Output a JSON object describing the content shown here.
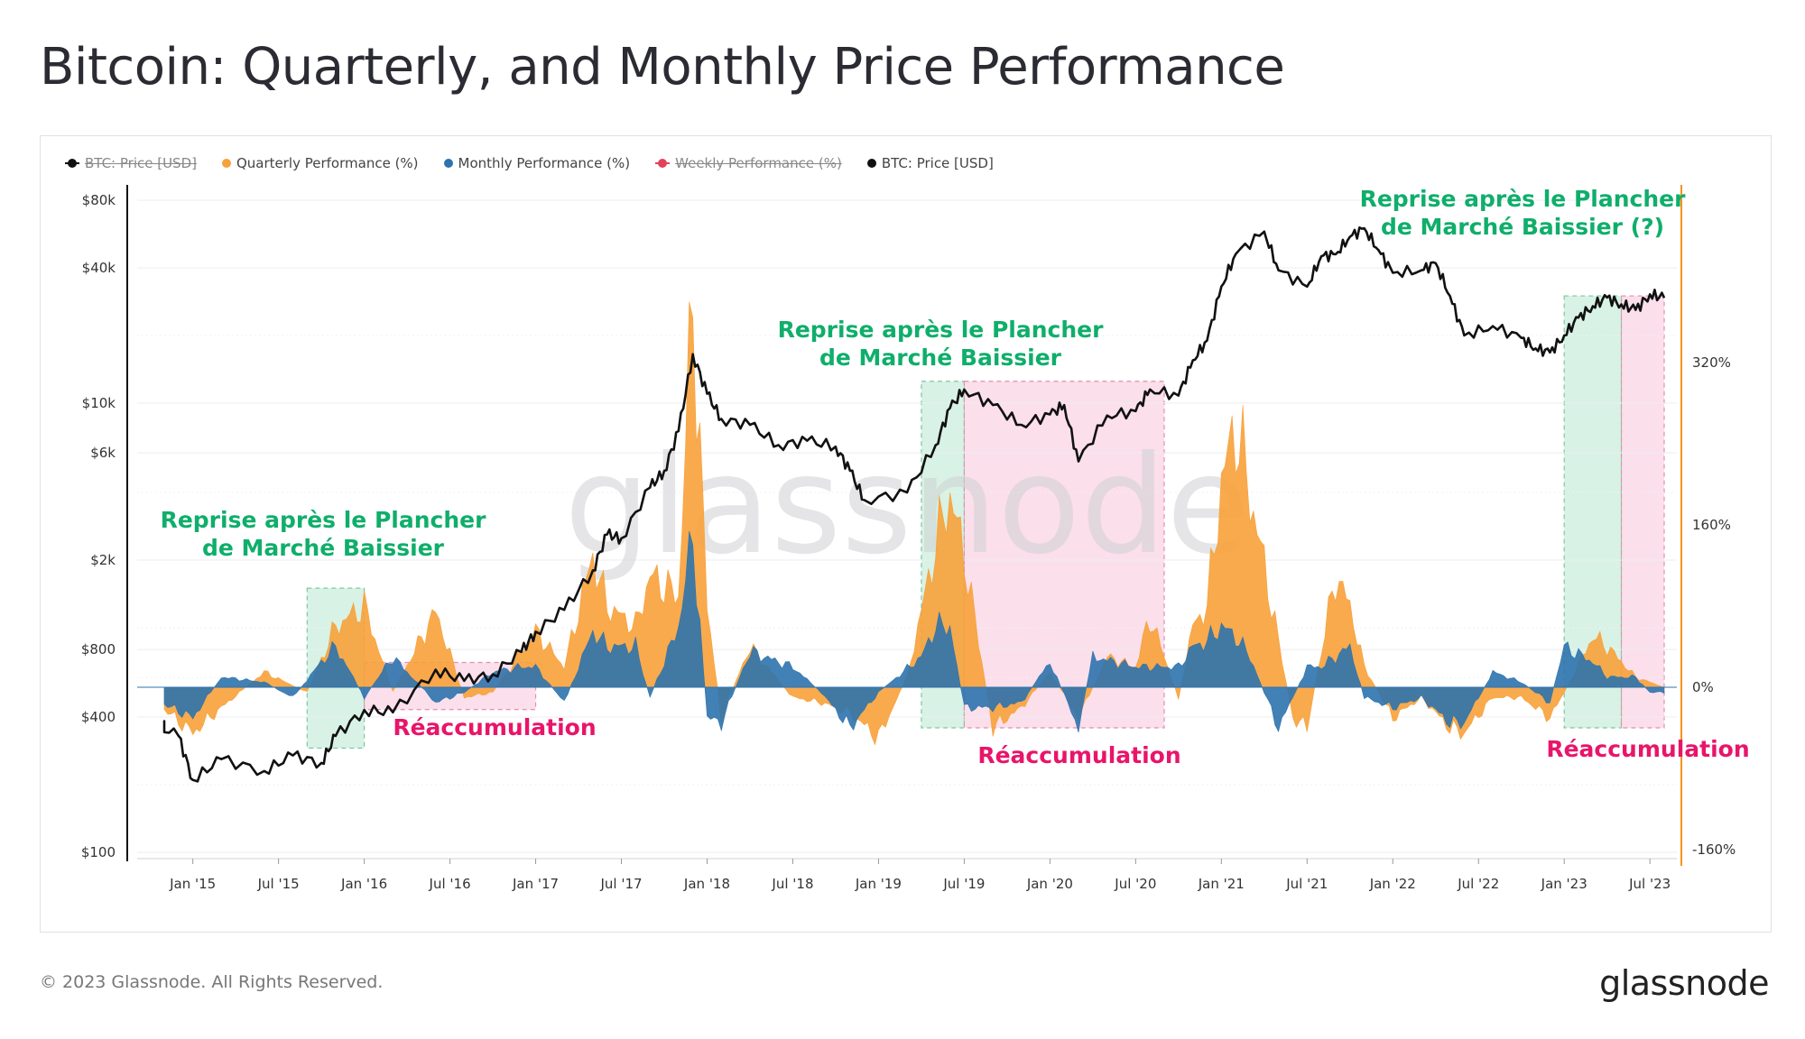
{
  "page": {
    "title": "Bitcoin: Quarterly, and Monthly Price Performance",
    "copyright": "© 2023 Glassnode. All Rights Reserved.",
    "logo": "glassnode",
    "watermark": "glassnode"
  },
  "colors": {
    "price": "#111111",
    "quarterly": "#f7a13a",
    "monthly": "#2e73ad",
    "weekly": "#e0435b",
    "green_zone": "#a9e3c5",
    "pink_zone": "#f7b7d2",
    "green_text": "#0fae6b",
    "pink_text": "#e8156a",
    "right_axis": "#f7931a"
  },
  "legend": [
    {
      "label": "BTC: Price [USD]",
      "color": "#111111",
      "marker": "line-dot",
      "enabled": false
    },
    {
      "label": "Quarterly Performance (%)",
      "color": "#f7a13a",
      "marker": "dot",
      "enabled": true
    },
    {
      "label": "Monthly Performance (%)",
      "color": "#2e73ad",
      "marker": "dot",
      "enabled": true
    },
    {
      "label": "Weekly Performance (%)",
      "color": "#e0435b",
      "marker": "line-dot",
      "enabled": false
    },
    {
      "label": "BTC: Price [USD]",
      "color": "#111111",
      "marker": "dot",
      "enabled": true
    }
  ],
  "chart_data": {
    "type": "line",
    "title": "Bitcoin: Quarterly, and Monthly Price Performance",
    "x_ticks": [
      "Jan '15",
      "Jul '15",
      "Jan '16",
      "Jul '16",
      "Jan '17",
      "Jul '17",
      "Jan '18",
      "Jul '18",
      "Jan '19",
      "Jul '19",
      "Jan '20",
      "Jul '20",
      "Jan '21",
      "Jul '21",
      "Jan '22",
      "Jul '22",
      "Jan '23",
      "Jul '23"
    ],
    "x_range": [
      "2014-10",
      "2023-08"
    ],
    "y_left": {
      "scale": "log",
      "ticks": [
        "$80k",
        "$40k",
        "$10k",
        "$6k",
        "$2k",
        "$800",
        "$400",
        "$100"
      ],
      "tick_values": [
        80000,
        40000,
        10000,
        6000,
        2000,
        800,
        400,
        100
      ],
      "range": [
        100,
        80000
      ]
    },
    "y_right": {
      "scale": "linear",
      "ticks": [
        "320%",
        "160%",
        "0%",
        "-160%"
      ],
      "tick_values": [
        320,
        160,
        0,
        -160
      ],
      "range": [
        -160,
        440
      ]
    },
    "series": [
      {
        "name": "BTC: Price [USD]",
        "axis": "left",
        "x": [
          "2014-10",
          "2014-12",
          "2015-01",
          "2015-03",
          "2015-06",
          "2015-08",
          "2015-10",
          "2015-11",
          "2016-01",
          "2016-03",
          "2016-06",
          "2016-08",
          "2016-10",
          "2016-12",
          "2017-01",
          "2017-03",
          "2017-05",
          "2017-06",
          "2017-07",
          "2017-09",
          "2017-10",
          "2017-11",
          "2017-12",
          "2018-01",
          "2018-02",
          "2018-04",
          "2018-06",
          "2018-08",
          "2018-10",
          "2018-11",
          "2018-12",
          "2019-03",
          "2019-05",
          "2019-06",
          "2019-07",
          "2019-09",
          "2019-11",
          "2020-01",
          "2020-02",
          "2020-03",
          "2020-05",
          "2020-07",
          "2020-08",
          "2020-10",
          "2020-11",
          "2020-12",
          "2021-01",
          "2021-02",
          "2021-04",
          "2021-05",
          "2021-07",
          "2021-08",
          "2021-09",
          "2021-10",
          "2021-11",
          "2021-12",
          "2022-01",
          "2022-03",
          "2022-04",
          "2022-05",
          "2022-06",
          "2022-08",
          "2022-10",
          "2022-11",
          "2022-12",
          "2023-01",
          "2023-02",
          "2023-03",
          "2023-04",
          "2023-05",
          "2023-06",
          "2023-07",
          "2023-08"
        ],
        "values": [
          380,
          330,
          210,
          260,
          230,
          270,
          250,
          330,
          430,
          420,
          650,
          580,
          620,
          780,
          960,
          1200,
          1800,
          2600,
          2500,
          4200,
          5000,
          7500,
          16500,
          11000,
          8500,
          8000,
          6500,
          6800,
          6400,
          5000,
          3700,
          4000,
          6500,
          9500,
          11500,
          9800,
          8000,
          8900,
          9800,
          5500,
          8800,
          9200,
          11500,
          10800,
          15500,
          19000,
          33000,
          46000,
          58000,
          39000,
          33000,
          45000,
          46000,
          55000,
          60000,
          48000,
          38000,
          39000,
          42000,
          30000,
          20000,
          22000,
          19500,
          17500,
          16800,
          20000,
          24000,
          27000,
          29500,
          27500,
          26000,
          30500,
          29400
        ]
      },
      {
        "name": "Quarterly Performance (%)",
        "axis": "right",
        "x": [
          "2014-10",
          "2015-01",
          "2015-03",
          "2015-06",
          "2015-09",
          "2015-11",
          "2016-01",
          "2016-03",
          "2016-06",
          "2016-08",
          "2016-10",
          "2017-01",
          "2017-03",
          "2017-05",
          "2017-06",
          "2017-08",
          "2017-09",
          "2017-11",
          "2017-12",
          "2018-01",
          "2018-02",
          "2018-04",
          "2018-07",
          "2018-09",
          "2018-11",
          "2019-01",
          "2019-03",
          "2019-05",
          "2019-06",
          "2019-07",
          "2019-09",
          "2019-11",
          "2020-01",
          "2020-03",
          "2020-05",
          "2020-07",
          "2020-08",
          "2020-10",
          "2020-11",
          "2020-12",
          "2021-01",
          "2021-02",
          "2021-04",
          "2021-06",
          "2021-07",
          "2021-09",
          "2021-10",
          "2021-11",
          "2022-01",
          "2022-03",
          "2022-05",
          "2022-06",
          "2022-08",
          "2022-10",
          "2022-12",
          "2023-01",
          "2023-03",
          "2023-04",
          "2023-06",
          "2023-08"
        ],
        "values": [
          -10,
          -45,
          -20,
          15,
          -5,
          60,
          80,
          -5,
          75,
          -10,
          -5,
          55,
          20,
          130,
          80,
          60,
          110,
          90,
          390,
          80,
          -30,
          40,
          -10,
          -15,
          -25,
          -50,
          10,
          140,
          190,
          130,
          -40,
          -20,
          15,
          -30,
          30,
          20,
          70,
          -10,
          60,
          80,
          200,
          260,
          120,
          -30,
          -40,
          110,
          80,
          20,
          -30,
          -10,
          -40,
          -45,
          -10,
          -10,
          -30,
          -5,
          50,
          40,
          10,
          0
        ]
      },
      {
        "name": "Monthly Performance (%)",
        "axis": "right",
        "x": [
          "2014-10",
          "2015-01",
          "2015-03",
          "2015-06",
          "2015-08",
          "2015-10",
          "2015-11",
          "2016-01",
          "2016-03",
          "2016-06",
          "2016-08",
          "2016-10",
          "2016-12",
          "2017-01",
          "2017-03",
          "2017-05",
          "2017-06",
          "2017-08",
          "2017-09",
          "2017-11",
          "2017-12",
          "2018-01",
          "2018-02",
          "2018-04",
          "2018-07",
          "2018-09",
          "2018-11",
          "2019-01",
          "2019-04",
          "2019-05",
          "2019-06",
          "2019-07",
          "2019-09",
          "2019-11",
          "2020-01",
          "2020-03",
          "2020-04",
          "2020-07",
          "2020-10",
          "2020-11",
          "2020-12",
          "2021-01",
          "2021-02",
          "2021-03",
          "2021-05",
          "2021-07",
          "2021-08",
          "2021-10",
          "2021-11",
          "2022-01",
          "2022-03",
          "2022-05",
          "2022-06",
          "2022-08",
          "2022-10",
          "2022-12",
          "2023-01",
          "2023-03",
          "2023-04",
          "2023-06",
          "2023-07",
          "2023-08"
        ],
        "values": [
          -10,
          -30,
          10,
          5,
          -10,
          25,
          40,
          -10,
          30,
          -15,
          -5,
          15,
          20,
          20,
          -15,
          55,
          40,
          40,
          -10,
          60,
          150,
          -30,
          -35,
          35,
          20,
          -5,
          -40,
          -5,
          30,
          60,
          60,
          -20,
          -20,
          -15,
          25,
          -40,
          30,
          20,
          20,
          40,
          45,
          60,
          50,
          30,
          -40,
          20,
          20,
          40,
          -10,
          -20,
          -10,
          -35,
          -35,
          15,
          5,
          -15,
          40,
          25,
          10,
          10,
          -5,
          -5
        ]
      }
    ],
    "annotations": [
      {
        "text": "Reprise après le Plancher",
        "text2": "de Marché Baissier",
        "color": "green",
        "zone": [
          "2015-09",
          "2016-01"
        ]
      },
      {
        "text": "Réaccumulation",
        "color": "pink",
        "zone": [
          "2016-01",
          "2017-01"
        ]
      },
      {
        "text": "Reprise après le Plancher",
        "text2": "de Marché Baissier",
        "color": "green",
        "zone": [
          "2019-04",
          "2019-07"
        ]
      },
      {
        "text": "Réaccumulation",
        "color": "pink",
        "zone": [
          "2019-07",
          "2020-09"
        ]
      },
      {
        "text": "Reprise après le Plancher",
        "text2": "de Marché Baissier (?)",
        "color": "green",
        "zone": [
          "2023-01",
          "2023-05"
        ]
      },
      {
        "text": "Réaccumulation",
        "color": "pink",
        "zone": [
          "2023-05",
          "2023-08"
        ]
      }
    ]
  }
}
